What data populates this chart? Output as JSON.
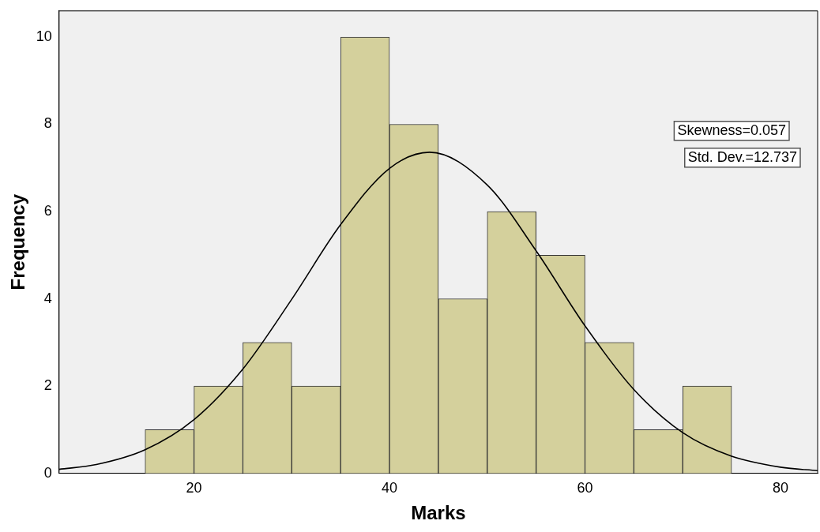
{
  "chart_data": {
    "type": "histogram",
    "xlabel": "Marks",
    "ylabel": "Frequency",
    "bins": [
      15,
      20,
      25,
      30,
      35,
      40,
      45,
      50,
      55,
      60,
      65,
      70,
      75
    ],
    "values": [
      1,
      2,
      3,
      2,
      10,
      8,
      4,
      6,
      5,
      3,
      1,
      2
    ],
    "color": "#d4d09c",
    "series": [
      {
        "type": "line",
        "color": "#000000",
        "x": [
          6.2,
          10,
          15,
          20,
          25,
          30,
          35,
          40,
          44.1,
          50,
          55,
          60,
          65,
          70,
          75,
          80,
          83.8
        ],
        "values": [
          0.09,
          0.2,
          0.54,
          1.23,
          2.39,
          3.99,
          5.7,
          6.99,
          7.36,
          6.61,
          5.1,
          3.38,
          1.92,
          0.93,
          0.39,
          0.14,
          0.06
        ]
      }
    ],
    "xlim": [
      6.2,
      83.8
    ],
    "xticks": [
      20,
      40,
      60,
      80
    ],
    "ylim": [
      0,
      10.6
    ],
    "yticks": [
      0,
      2,
      4,
      6,
      8,
      10
    ],
    "grid": false,
    "legend": false,
    "marker": "none",
    "line_style": "solid",
    "annotations": [
      "Skewness=0.057",
      "Std. Dev.=12.737"
    ]
  }
}
